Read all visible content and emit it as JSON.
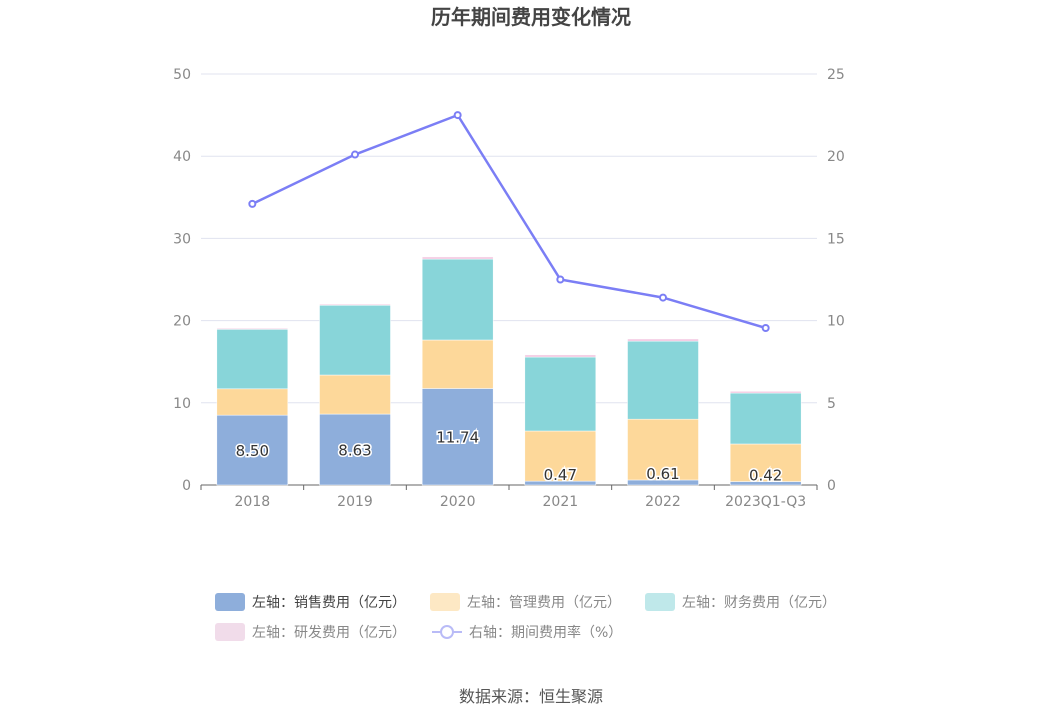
{
  "chart_data": {
    "type": "bar",
    "title": "历年期间费用变化情况",
    "source": "数据来源：恒生聚源",
    "categories": [
      "2018",
      "2019",
      "2020",
      "2021",
      "2022",
      "2023Q1-Q3"
    ],
    "left_axis": {
      "ylim": [
        0,
        50
      ],
      "ticks": [
        "0",
        "10",
        "20",
        "30",
        "40",
        "50"
      ]
    },
    "right_axis": {
      "ylim": [
        0,
        25
      ],
      "ticks": [
        "0",
        "5",
        "10",
        "15",
        "20",
        "25"
      ]
    },
    "grid": true,
    "legend_position": "bottom",
    "series": [
      {
        "name": "左轴：销售费用（亿元）",
        "type": "bar",
        "axis": "left",
        "color": "#8eaedb",
        "legend_color": "#8eaedb",
        "values": [
          8.5,
          8.63,
          11.74,
          0.47,
          0.61,
          0.42
        ],
        "labels": [
          "8.50",
          "8.63",
          "11.74",
          "0.47",
          "0.61",
          "0.42"
        ]
      },
      {
        "name": "左轴：管理费用（亿元）",
        "type": "bar",
        "axis": "left",
        "color": "#fdd89a",
        "legend_color": "#fde8c4",
        "values": [
          3.2,
          4.75,
          5.9,
          6.1,
          7.4,
          4.57
        ]
      },
      {
        "name": "左轴：财务费用（亿元）",
        "type": "bar",
        "axis": "left",
        "color": "#88d5d9",
        "legend_color": "#bfe8ea",
        "values": [
          7.3,
          8.5,
          9.85,
          9.0,
          9.5,
          6.2
        ]
      },
      {
        "name": "左轴：研发费用（亿元）",
        "type": "bar",
        "axis": "left",
        "color": "#f2c4df",
        "legend_color": "#f1dcea",
        "values": [
          0.05,
          0.1,
          0.25,
          0.25,
          0.25,
          0.2
        ]
      },
      {
        "name": "右轴：期间费用率（%）",
        "type": "line",
        "axis": "right",
        "color": "#7b7ef5",
        "legend_color": "#b9bbf7",
        "values": [
          17.1,
          20.1,
          22.5,
          12.5,
          11.4,
          9.55
        ]
      }
    ]
  }
}
